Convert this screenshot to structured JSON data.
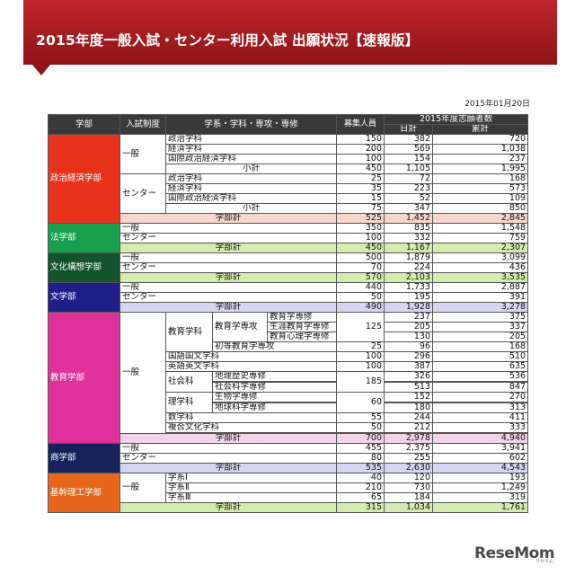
{
  "title": "2015年度一般入試・センター利用入試 出願状況【速報版】",
  "date": "2015年01月20日",
  "header": {
    "dept": "学部",
    "system": "入試制度",
    "program": "学系・学科・専攻・専修",
    "quota": "募集人員",
    "applicants": "2015年度志願者数",
    "daily": "日計",
    "total": "累計"
  },
  "labels": {
    "general": "一般",
    "center": "センター",
    "subtotal": "小計",
    "dept_total": "学部計"
  },
  "colors": {
    "banner": "#a81c20",
    "seikei": "#e8331c",
    "hogaku": "#18a04f",
    "bunka": "#14542c",
    "bungaku": "#1f1f8a",
    "kyoiku": "#e0329c",
    "shogaku": "#15235a",
    "kikan": "#e8661c",
    "row_dept_total_1": "#f7d7cd",
    "row_dept_total_2": "#d5ecb0",
    "row_dept_total_3": "#d6d6f3",
    "row_dept_total_4": "#f5d2ec"
  },
  "departments": {
    "seikei": "政治経済学部",
    "hogaku": "法学部",
    "bunka": "文化構想学部",
    "bungaku": "文学部",
    "kyoiku": "教育学部",
    "shogaku": "商学部",
    "kikan": "基幹理工学部"
  },
  "seikei": {
    "general": [
      {
        "name": "政治学科",
        "quota": "150",
        "daily": "382",
        "total": "720"
      },
      {
        "name": "経済学科",
        "quota": "200",
        "daily": "569",
        "total": "1,038"
      },
      {
        "name": "国際政治経済学科",
        "quota": "100",
        "daily": "154",
        "total": "237"
      }
    ],
    "general_sub": {
      "quota": "450",
      "daily": "1,105",
      "total": "1,995"
    },
    "center": [
      {
        "name": "政治学科",
        "quota": "25",
        "daily": "72",
        "total": "168"
      },
      {
        "name": "経済学科",
        "quota": "35",
        "daily": "223",
        "total": "573"
      },
      {
        "name": "国際政治経済学科",
        "quota": "15",
        "daily": "52",
        "total": "109"
      }
    ],
    "center_sub": {
      "quota": "75",
      "daily": "347",
      "total": "850"
    },
    "dept_total": {
      "quota": "525",
      "daily": "1,452",
      "total": "2,845"
    }
  },
  "hogaku": {
    "general": {
      "quota": "350",
      "daily": "835",
      "total": "1,548"
    },
    "center": {
      "quota": "100",
      "daily": "332",
      "total": "759"
    },
    "dept_total": {
      "quota": "450",
      "daily": "1,167",
      "total": "2,307"
    }
  },
  "bunka": {
    "general": {
      "quota": "500",
      "daily": "1,879",
      "total": "3,099"
    },
    "center": {
      "quota": "70",
      "daily": "224",
      "total": "436"
    },
    "dept_total": {
      "quota": "570",
      "daily": "2,103",
      "total": "3,535"
    }
  },
  "bungaku": {
    "general": {
      "quota": "440",
      "daily": "1,733",
      "total": "2,887"
    },
    "center": {
      "quota": "50",
      "daily": "195",
      "total": "391"
    },
    "dept_total": {
      "quota": "490",
      "daily": "1,928",
      "total": "3,278"
    }
  },
  "kyoiku": {
    "kyoikugakka": "教育学科",
    "kyoikugaku_senkou": "教育学専攻",
    "kyoikugaku_senshu": "教育学専修",
    "shogai": "生涯教育学専修",
    "shinri": "教育心理学専修",
    "senshu_quota": "125",
    "senshu_rows": [
      {
        "daily": "237",
        "total": "375"
      },
      {
        "daily": "205",
        "total": "337"
      },
      {
        "daily": "130",
        "total": "205"
      }
    ],
    "shoto": {
      "name": "初等教育学専攻",
      "quota": "25",
      "daily": "96",
      "total": "168"
    },
    "kokugo": {
      "name": "国語国文学科",
      "quota": "100",
      "daily": "296",
      "total": "510"
    },
    "eigo": {
      "name": "英語英文学科",
      "quota": "100",
      "daily": "387",
      "total": "635"
    },
    "shakai": "社会科",
    "shakai_quota": "185",
    "chireki": {
      "name": "地理歴史専修",
      "daily": "326",
      "total": "536"
    },
    "kokyo": {
      "name": "社会科学専修",
      "daily": "513",
      "total": "847"
    },
    "rigaku": "理学科",
    "rigaku_quota": "60",
    "seibutsu": {
      "name": "生物学専修",
      "daily": "152",
      "total": "270"
    },
    "chikyu": {
      "name": "地球科学専修",
      "daily": "180",
      "total": "313"
    },
    "sugaku": {
      "name": "数学科",
      "quota": "55",
      "daily": "244",
      "total": "411"
    },
    "fukugo": {
      "name": "複合文化学科",
      "quota": "50",
      "daily": "212",
      "total": "333"
    },
    "dept_total": {
      "quota": "700",
      "daily": "2,978",
      "total": "4,940"
    }
  },
  "shogaku": {
    "general": {
      "quota": "455",
      "daily": "2,375",
      "total": "3,941"
    },
    "center": {
      "quota": "80",
      "daily": "255",
      "total": "602"
    },
    "dept_total": {
      "quota": "535",
      "daily": "2,630",
      "total": "4,543"
    }
  },
  "kikan": {
    "rows": [
      {
        "name": "学系Ⅰ",
        "quota": "40",
        "daily": "120",
        "total": "193"
      },
      {
        "name": "学系Ⅱ",
        "quota": "210",
        "daily": "730",
        "total": "1,249"
      },
      {
        "name": "学系Ⅲ",
        "quota": "65",
        "daily": "184",
        "total": "319"
      }
    ],
    "dept_total": {
      "quota": "315",
      "daily": "1,034",
      "total": "1,761"
    }
  },
  "watermark": "ReseMom",
  "watermark_sub": "リセマム"
}
